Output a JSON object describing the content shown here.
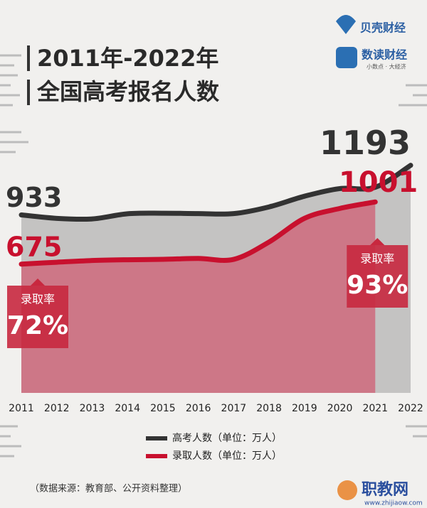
{
  "chart_data": {
    "type": "line",
    "title_lines": [
      "2011年-2022年",
      "全国高考报名人数"
    ],
    "logos": [
      "贝壳财经",
      "数读财经",
      "小数点 · 大经济"
    ],
    "categories": [
      "2011",
      "2012",
      "2013",
      "2014",
      "2015",
      "2016",
      "2017",
      "2018",
      "2019",
      "2020",
      "2021",
      "2022"
    ],
    "series": [
      {
        "name": "高考人数（单位：万人）",
        "color": "#333333",
        "area_color": "#c4c3c2",
        "values": [
          933,
          915,
          912,
          939,
          942,
          940,
          940,
          975,
          1031,
          1071,
          1078,
          1193
        ]
      },
      {
        "name": "录取人数（单位：万人）",
        "color": "#c8102e",
        "area_color": "#cf6a7c",
        "values": [
          675,
          685,
          694,
          698,
          700,
          705,
          700,
          791,
          915,
          967,
          1001,
          null
        ]
      }
    ],
    "annotations": [
      {
        "title": "录取率",
        "text": "72%",
        "category": "2011"
      },
      {
        "title": "录取率",
        "text": "93%",
        "category": "2021"
      }
    ],
    "source": "（数据来源：教育部、公开资料整理）",
    "watermark": [
      "职教网",
      "www.zhijiaow.com"
    ]
  }
}
